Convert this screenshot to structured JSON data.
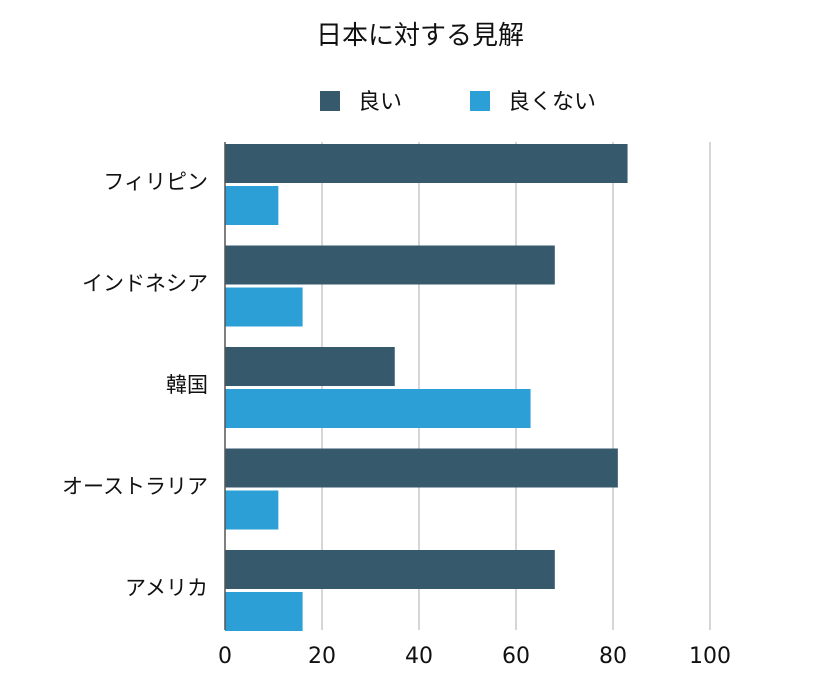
{
  "chart_data": {
    "type": "bar",
    "orientation": "horizontal",
    "title": "日本に対する見解",
    "categories": [
      "フィリピン",
      "インドネシア",
      "韓国",
      "オーストラリア",
      "アメリカ"
    ],
    "series": [
      {
        "name": "良い",
        "color": "#37596c",
        "values": [
          83,
          68,
          35,
          81,
          68
        ]
      },
      {
        "name": "良くない",
        "color": "#2b9fd6",
        "values": [
          11,
          16,
          63,
          11,
          16
        ]
      }
    ],
    "xlim": [
      0,
      100
    ],
    "xticks": [
      0,
      20,
      40,
      60,
      80,
      100
    ],
    "xlabel": "",
    "ylabel": "",
    "grid": true,
    "legend_position": "top-center"
  }
}
